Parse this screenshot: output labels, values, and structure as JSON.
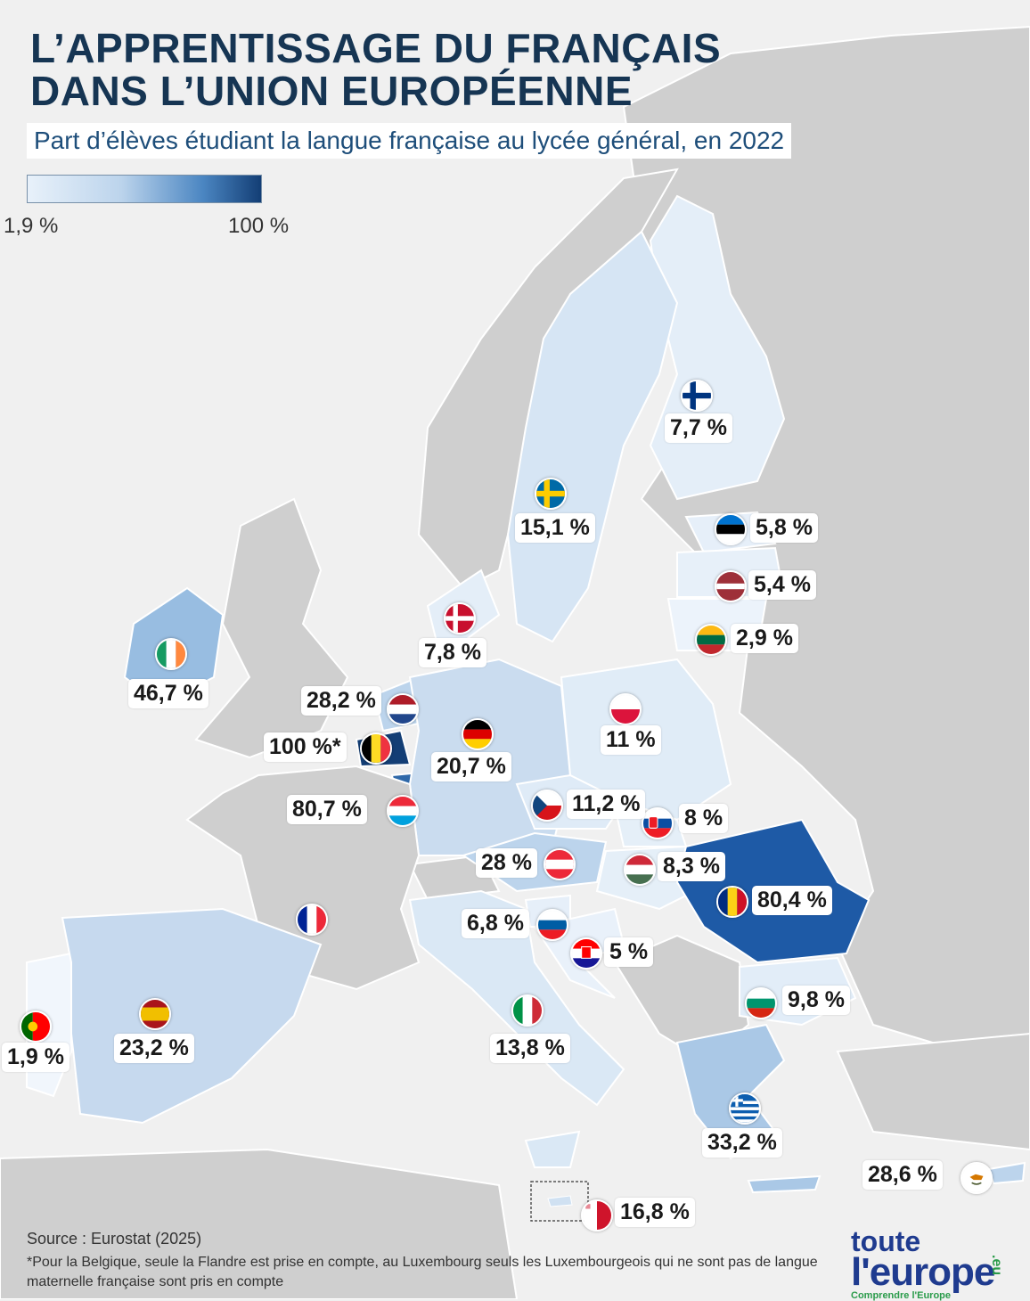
{
  "title_lines": [
    "L’APPRENTISSAGE DU FRANÇAIS",
    "DANS L’UNION EUROPÉENNE"
  ],
  "subtitle": "Part d’élèves étudiant la langue française au lycée général, en 2022",
  "legend": {
    "min": "1,9 %",
    "max": "100 %",
    "color_min": "#e8f1fa",
    "color_max": "#133e75"
  },
  "countries": [
    {
      "key": "finland",
      "label": "7,7 %",
      "flag_icon": "finland-flag-icon"
    },
    {
      "key": "sweden",
      "label": "15,1 %",
      "flag_icon": "sweden-flag-icon"
    },
    {
      "key": "estonia",
      "label": "5,8 %",
      "flag_icon": "estonia-flag-icon"
    },
    {
      "key": "latvia",
      "label": "5,4 %",
      "flag_icon": "latvia-flag-icon"
    },
    {
      "key": "lithuania",
      "label": "2,9 %",
      "flag_icon": "lithuania-flag-icon"
    },
    {
      "key": "denmark",
      "label": "7,8 %",
      "flag_icon": "denmark-flag-icon"
    },
    {
      "key": "ireland",
      "label": "46,7 %",
      "flag_icon": "ireland-flag-icon"
    },
    {
      "key": "netherlands",
      "label": "28,2 %",
      "flag_icon": "netherlands-flag-icon"
    },
    {
      "key": "belgium",
      "label": "100 %*",
      "flag_icon": "belgium-flag-icon"
    },
    {
      "key": "germany",
      "label": "20,7 %",
      "flag_icon": "germany-flag-icon"
    },
    {
      "key": "poland",
      "label": "11 %",
      "flag_icon": "poland-flag-icon"
    },
    {
      "key": "luxembourg",
      "label": "80,7 %",
      "flag_icon": "luxembourg-flag-icon"
    },
    {
      "key": "czechia",
      "label": "11,2 %",
      "flag_icon": "czechia-flag-icon"
    },
    {
      "key": "slovakia",
      "label": "8 %",
      "flag_icon": "slovakia-flag-icon"
    },
    {
      "key": "austria",
      "label": "28 %",
      "flag_icon": "austria-flag-icon"
    },
    {
      "key": "hungary",
      "label": "8,3 %",
      "flag_icon": "hungary-flag-icon"
    },
    {
      "key": "romania",
      "label": "80,4 %",
      "flag_icon": "romania-flag-icon"
    },
    {
      "key": "slovenia",
      "label": "6,8 %",
      "flag_icon": "slovenia-flag-icon"
    },
    {
      "key": "croatia",
      "label": "5 %",
      "flag_icon": "croatia-flag-icon"
    },
    {
      "key": "france",
      "label": "",
      "flag_icon": "france-flag-icon"
    },
    {
      "key": "bulgaria",
      "label": "9,8 %",
      "flag_icon": "bulgaria-flag-icon"
    },
    {
      "key": "portugal",
      "label": "1,9 %",
      "flag_icon": "portugal-flag-icon"
    },
    {
      "key": "spain",
      "label": "23,2 %",
      "flag_icon": "spain-flag-icon"
    },
    {
      "key": "italy",
      "label": "13,8 %",
      "flag_icon": "italy-flag-icon"
    },
    {
      "key": "greece",
      "label": "33,2 %",
      "flag_icon": "greece-flag-icon"
    },
    {
      "key": "cyprus",
      "label": "28,6 %",
      "flag_icon": "cyprus-flag-icon"
    },
    {
      "key": "malta",
      "label": "16,8 %",
      "flag_icon": "malta-flag-icon"
    }
  ],
  "source": "Source : Eurostat (2025)",
  "note": "*Pour la Belgique, seule la Flandre est prise en compte, au Luxembourg seuls les Luxembourgeois qui ne sont pas de langue maternelle française sont pris en compte",
  "logo": {
    "line1": "toute",
    "line2": "l'europe",
    "suffix": ".eu",
    "tagline": "Comprendre l'Europe"
  }
}
